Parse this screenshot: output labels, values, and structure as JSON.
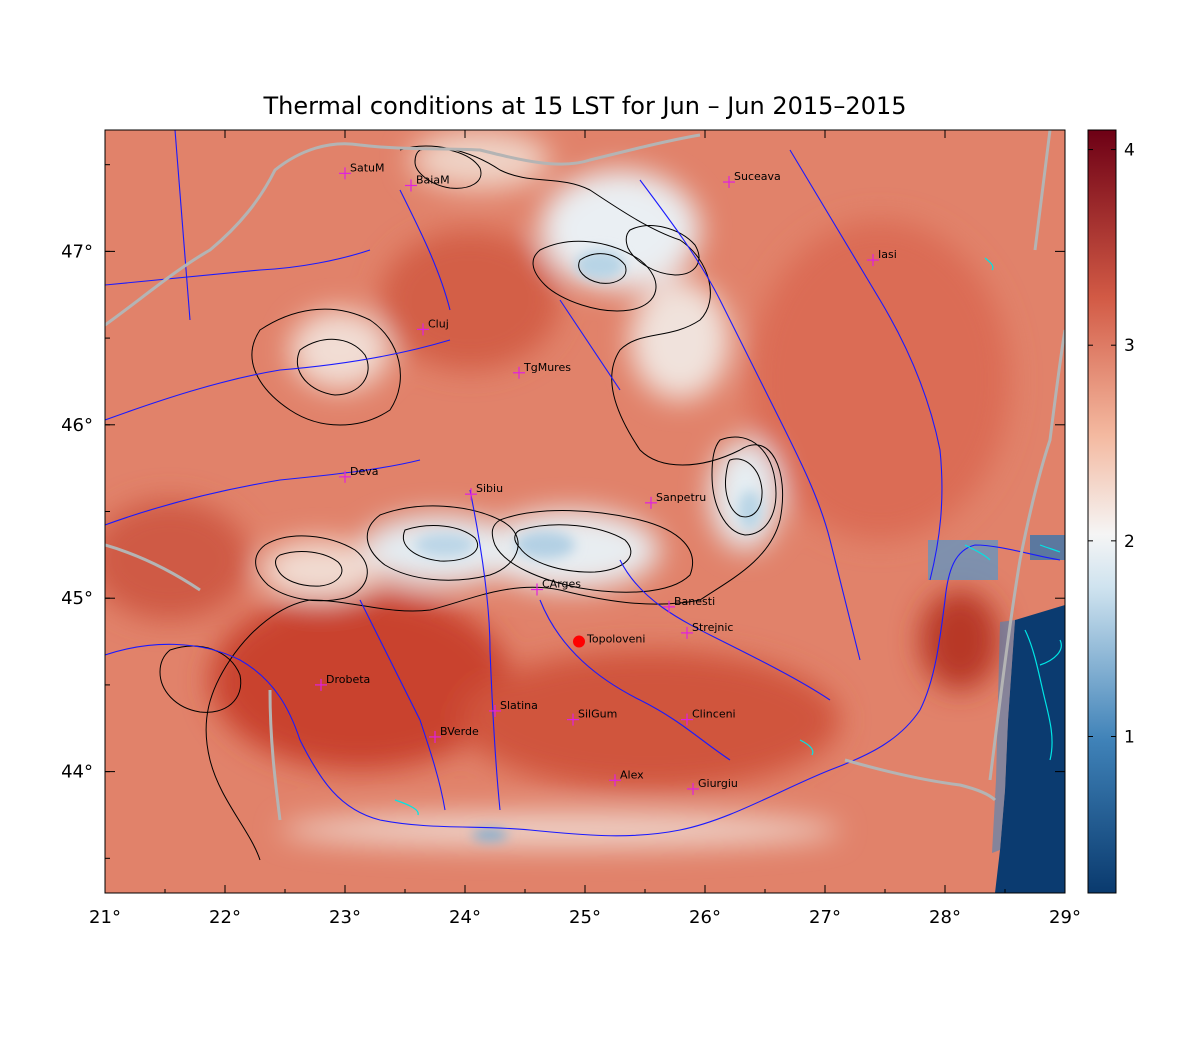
{
  "title": "Thermal conditions at 15 LST for Jun – Jun  2015–2015",
  "map": {
    "lon_range": [
      21,
      29
    ],
    "lat_range": [
      43.3,
      47.7
    ],
    "lon_ticks": [
      21,
      22,
      23,
      24,
      25,
      26,
      27,
      28,
      29
    ],
    "lat_ticks": [
      44,
      45,
      46,
      47
    ],
    "lon_tick_labels": [
      "21°",
      "22°",
      "23°",
      "24°",
      "25°",
      "26°",
      "27°",
      "28°",
      "29°"
    ],
    "lat_tick_labels": [
      "44°",
      "45°",
      "46°",
      "47°"
    ],
    "cities": [
      {
        "name": "SatuM",
        "lon": 23.0,
        "lat": 47.45
      },
      {
        "name": "BaiaM",
        "lon": 23.55,
        "lat": 47.38
      },
      {
        "name": "Suceava",
        "lon": 26.2,
        "lat": 47.4
      },
      {
        "name": "Iasi",
        "lon": 27.4,
        "lat": 46.95
      },
      {
        "name": "Cluj",
        "lon": 23.65,
        "lat": 46.55
      },
      {
        "name": "TgMures",
        "lon": 24.45,
        "lat": 46.3
      },
      {
        "name": "Deva",
        "lon": 23.0,
        "lat": 45.7
      },
      {
        "name": "Sibiu",
        "lon": 24.05,
        "lat": 45.6
      },
      {
        "name": "Sanpetru",
        "lon": 25.55,
        "lat": 45.55
      },
      {
        "name": "CArges",
        "lon": 24.6,
        "lat": 45.05
      },
      {
        "name": "Banesti",
        "lon": 25.7,
        "lat": 44.95
      },
      {
        "name": "Strejnic",
        "lon": 25.85,
        "lat": 44.8
      },
      {
        "name": "Drobeta",
        "lon": 22.8,
        "lat": 44.5
      },
      {
        "name": "BVerde",
        "lon": 23.75,
        "lat": 44.2
      },
      {
        "name": "Slatina",
        "lon": 24.25,
        "lat": 44.35
      },
      {
        "name": "SilGum",
        "lon": 24.9,
        "lat": 44.3
      },
      {
        "name": "Clinceni",
        "lon": 25.85,
        "lat": 44.3
      },
      {
        "name": "Alex",
        "lon": 25.25,
        "lat": 43.95
      },
      {
        "name": "Giurgiu",
        "lon": 25.9,
        "lat": 43.9
      }
    ],
    "highlight": {
      "name": "Topoloveni",
      "lon": 24.95,
      "lat": 44.75
    }
  },
  "colorbar": {
    "min": 0.2,
    "max": 4.1,
    "ticks": [
      1,
      2,
      3,
      4
    ],
    "tick_labels": [
      "1",
      "2",
      "3",
      "4"
    ]
  },
  "colors": {
    "low": "#0a3a6e",
    "mid": "#f5f5f5",
    "high": "#6d0015",
    "rivers": "#1a1aff",
    "borders": "#b4b4b4",
    "contours": "#000000",
    "city_marker": "#e020e0",
    "highlight_marker": "#ff0000"
  }
}
